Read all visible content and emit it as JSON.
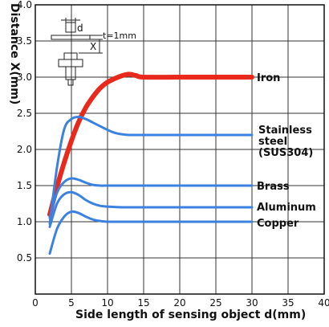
{
  "chart_data": {
    "type": "line",
    "title": "",
    "xlabel": "Side length of sensing object d(mm)",
    "ylabel": "Distance X(mm)",
    "xlim": [
      0,
      40
    ],
    "ylim": [
      0,
      4.0
    ],
    "x_ticks": [
      "0",
      "5",
      "10",
      "15",
      "20",
      "25",
      "30",
      "35",
      "40"
    ],
    "y_ticks": [
      "0.5",
      "1.0",
      "1.5",
      "2.0",
      "2.5",
      "3.0",
      "3.5",
      "4.0"
    ],
    "grid": true,
    "legend": "right, inline labels at line ends",
    "series": [
      {
        "name": "Iron",
        "color": "#e8291c",
        "x": [
          2,
          3,
          4,
          5,
          6,
          7,
          8,
          9,
          10,
          11,
          12,
          13,
          14,
          15,
          20,
          25,
          30
        ],
        "y": [
          1.1,
          1.48,
          1.82,
          2.12,
          2.38,
          2.58,
          2.73,
          2.85,
          2.93,
          2.98,
          3.02,
          3.04,
          3.02,
          3.0,
          3.0,
          3.0,
          3.0
        ]
      },
      {
        "name": "Stainless steel (SUS304)",
        "color": "#3b82e0",
        "x": [
          2,
          3,
          4,
          5,
          6,
          7,
          8,
          9,
          10,
          11,
          12,
          13,
          15,
          20,
          25,
          30
        ],
        "y": [
          0.97,
          1.75,
          2.28,
          2.42,
          2.45,
          2.42,
          2.37,
          2.32,
          2.27,
          2.23,
          2.21,
          2.2,
          2.2,
          2.2,
          2.2,
          2.2
        ]
      },
      {
        "name": "Brass",
        "color": "#3b82e0",
        "x": [
          2,
          3,
          4,
          5,
          6,
          7,
          8,
          9,
          10,
          12,
          15,
          20,
          25,
          30
        ],
        "y": [
          1.05,
          1.4,
          1.55,
          1.6,
          1.58,
          1.54,
          1.51,
          1.5,
          1.5,
          1.5,
          1.5,
          1.5,
          1.5,
          1.5
        ]
      },
      {
        "name": "Aluminum",
        "color": "#3b82e0",
        "x": [
          2,
          3,
          4,
          5,
          6,
          7,
          8,
          9,
          10,
          12,
          15,
          20,
          25,
          30
        ],
        "y": [
          0.93,
          1.25,
          1.38,
          1.41,
          1.37,
          1.3,
          1.25,
          1.22,
          1.21,
          1.2,
          1.2,
          1.2,
          1.2,
          1.2
        ]
      },
      {
        "name": "Copper",
        "color": "#3b82e0",
        "x": [
          2,
          3,
          4,
          5,
          6,
          7,
          8,
          9,
          10,
          12,
          15,
          20,
          25,
          30
        ],
        "y": [
          0.56,
          0.9,
          1.07,
          1.14,
          1.12,
          1.07,
          1.03,
          1.01,
          1.0,
          1.0,
          1.0,
          1.0,
          1.0,
          1.0
        ]
      }
    ],
    "labels": {
      "iron": "Iron",
      "stainless_1": "Stainless",
      "stainless_2": "steel",
      "stainless_3": "(SUS304)",
      "brass": "Brass",
      "aluminum": "Aluminum",
      "copper": "Copper"
    },
    "inset": {
      "d_label": "d",
      "x_label": "X",
      "t_label": "t=1mm"
    }
  }
}
